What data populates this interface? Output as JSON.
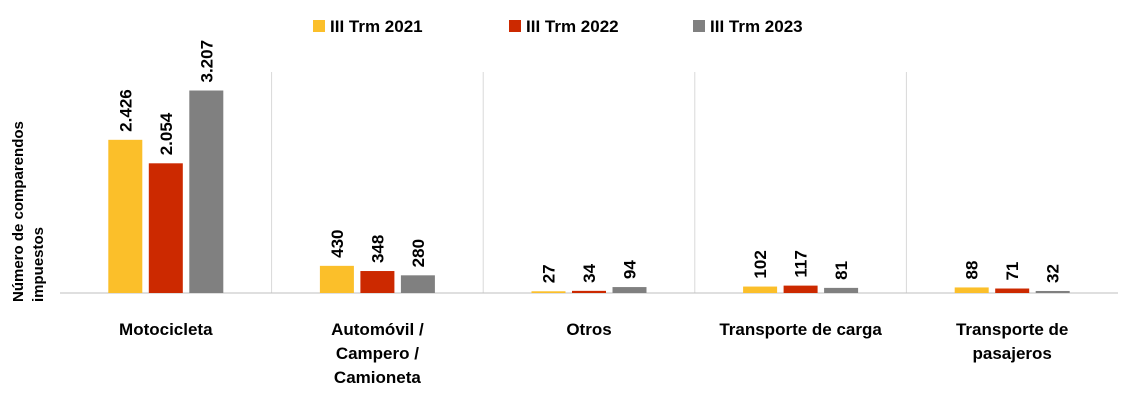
{
  "chart_data": {
    "type": "bar",
    "ylabel": "Número de comparendos impuestos",
    "categories": [
      "Motocicleta",
      "Automóvil / Campero / Camioneta",
      "Otros",
      "Transporte de carga",
      "Transporte de pasajeros"
    ],
    "series": [
      {
        "name": "III Trm 2021",
        "color": "#fbbf2a",
        "values": [
          2426,
          430,
          27,
          102,
          88
        ],
        "value_labels": [
          "2.426",
          "430",
          "27",
          "102",
          "88"
        ]
      },
      {
        "name": "III Trm 2022",
        "color": "#cc2900",
        "values": [
          2054,
          348,
          34,
          117,
          71
        ],
        "value_labels": [
          "2.054",
          "348",
          "34",
          "117",
          "71"
        ]
      },
      {
        "name": "III Trm 2023",
        "color": "#808080",
        "values": [
          3207,
          280,
          94,
          81,
          32
        ],
        "value_labels": [
          "3.207",
          "280",
          "94",
          "81",
          "32"
        ]
      }
    ],
    "ylim": [
      0,
      3500
    ],
    "legend": "top"
  }
}
